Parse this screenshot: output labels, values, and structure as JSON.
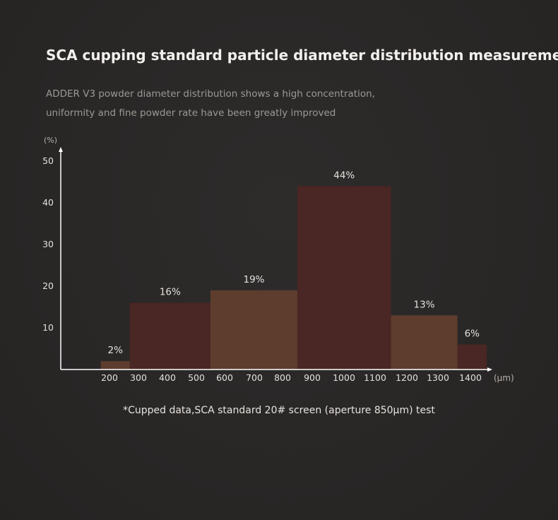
{
  "header": {
    "title": "SCA cupping standard particle diameter distribution measurement",
    "subtitle_line1": "ADDER V3 powder diameter distribution shows a high concentration,",
    "subtitle_line2": "uniformity and fine powder rate have been greatly improved"
  },
  "footnote": "*Cupped data,SCA standard 20# screen (aperture 850μm) test",
  "colors": {
    "dark_bar": "#4a2624",
    "light_bar": "#5e3d2e",
    "axis": "#ffffff",
    "tick_text": "#e4e0dc",
    "unit_text": "#b5b0ab"
  },
  "chart_data": {
    "type": "bar",
    "title": "",
    "xlabel": "(μm)",
    "ylabel": "(%)",
    "ylim": [
      0,
      55
    ],
    "yticks": [
      10,
      20,
      30,
      40,
      50
    ],
    "xticks": [
      "200",
      "300",
      "400",
      "500",
      "600",
      "700",
      "800",
      "900",
      "1000",
      "1100",
      "1200",
      "1300",
      "1400"
    ],
    "bars": [
      {
        "label": "2%",
        "value": 2,
        "x_start": 170,
        "x_end": 270,
        "shade": "light"
      },
      {
        "label": "16%",
        "value": 16,
        "x_start": 270,
        "x_end": 550,
        "shade": "dark"
      },
      {
        "label": "19%",
        "value": 19,
        "x_start": 550,
        "x_end": 850,
        "shade": "light"
      },
      {
        "label": "44%",
        "value": 44,
        "x_start": 850,
        "x_end": 1150,
        "shade": "dark"
      },
      {
        "label": "13%",
        "value": 13,
        "x_start": 1150,
        "x_end": 1360,
        "shade": "light"
      },
      {
        "label": "6%",
        "value": 6,
        "x_start": 1360,
        "x_end": 1450,
        "shade": "dark"
      }
    ]
  }
}
